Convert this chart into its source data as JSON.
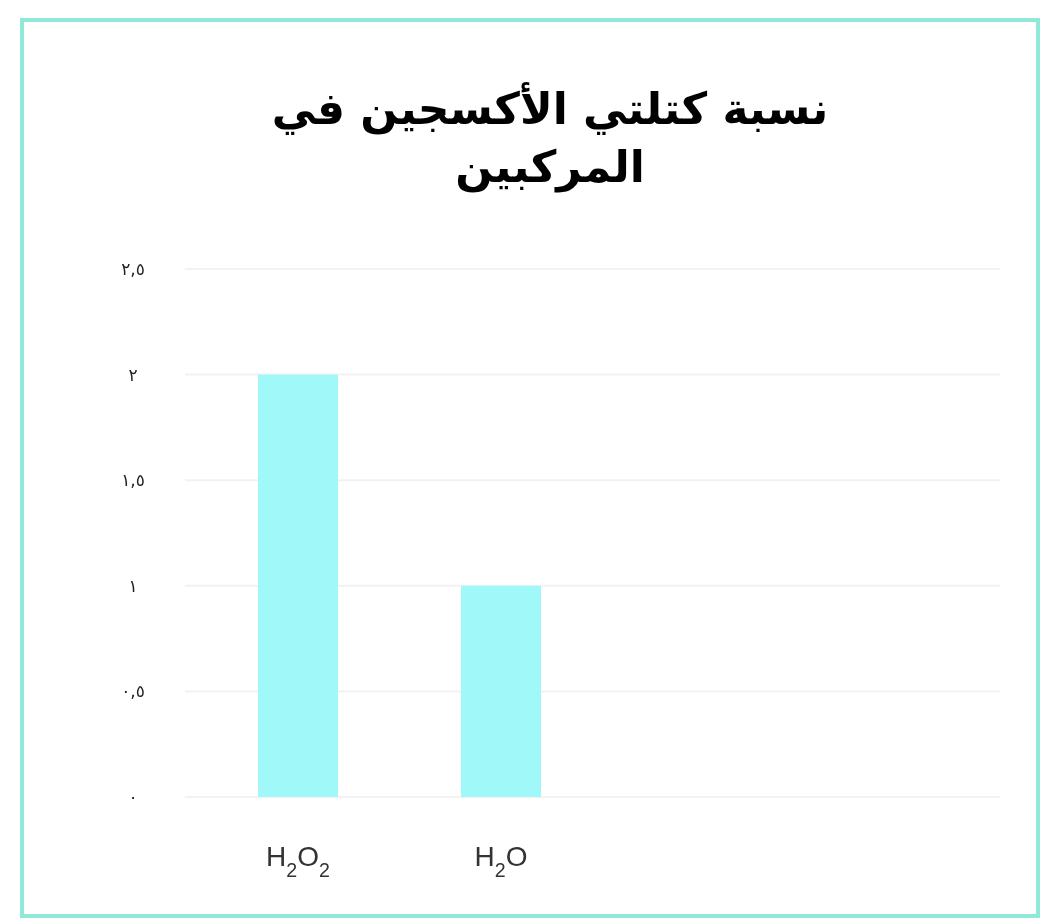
{
  "chart_data": {
    "type": "bar",
    "title": "نسبة كتلتي الأكسجين في المركبين",
    "categories": [
      "H$_{2}$O$_{2}$",
      "H$_{2}$O"
    ],
    "values": [
      2,
      1
    ],
    "color": "#a0f8f8",
    "ylim": [
      0,
      2.5
    ],
    "yticks": [
      {
        "value": 0,
        "label": "٠"
      },
      {
        "value": 0.5,
        "label": "٠,٥"
      },
      {
        "value": 1,
        "label": "١"
      },
      {
        "value": 1.5,
        "label": "١,٥"
      },
      {
        "value": 2,
        "label": "٢"
      },
      {
        "value": 2.5,
        "label": "٢,٥"
      }
    ],
    "grid": "y"
  }
}
